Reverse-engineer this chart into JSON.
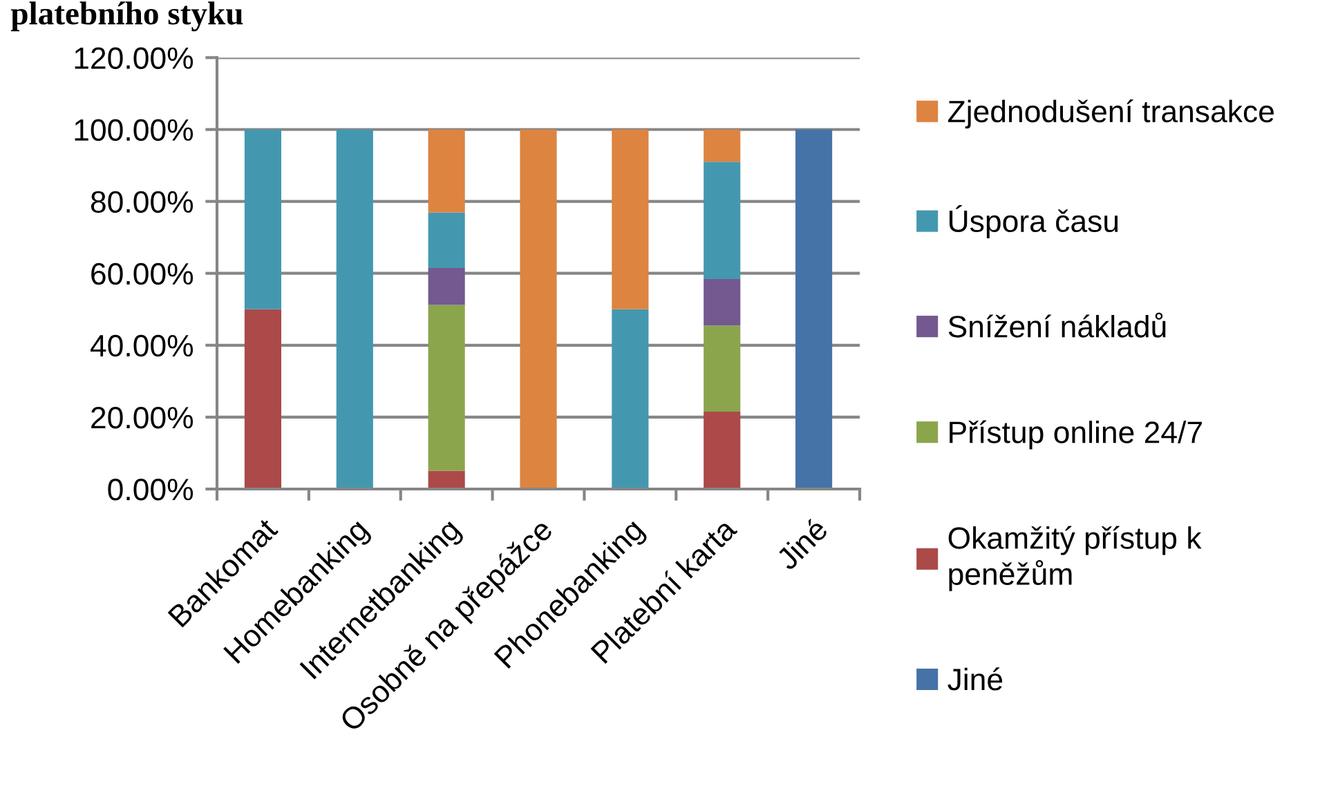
{
  "chart_data": {
    "type": "bar",
    "title": "platebního styku",
    "stacked": true,
    "categories": [
      "Bankomat",
      "Homebanking",
      "Internetbanking",
      "Osobně na přepážce",
      "Phonebanking",
      "Platební karta",
      "Jiné"
    ],
    "series": [
      {
        "name": "Jiné",
        "color": "#4573a7",
        "values": [
          null,
          null,
          null,
          null,
          null,
          null,
          100
        ]
      },
      {
        "name": "Okamžitý přístup k\npeněžům",
        "color": "#ab4a48",
        "values": [
          50,
          null,
          5.1,
          null,
          null,
          21.5,
          null
        ]
      },
      {
        "name": "Přístup online 24/7",
        "color": "#8ba54d",
        "values": [
          null,
          null,
          46.1,
          null,
          null,
          24.0,
          null
        ]
      },
      {
        "name": "Snížení nákladů",
        "color": "#73598f",
        "values": [
          null,
          null,
          10.3,
          null,
          null,
          12.9,
          null
        ]
      },
      {
        "name": "Úspora času",
        "color": "#4398b0",
        "values": [
          50,
          100,
          15.4,
          null,
          50,
          32.6,
          null
        ]
      },
      {
        "name": "Zjednodušení transakce",
        "color": "#dd8440",
        "values": [
          null,
          null,
          23.1,
          100,
          50,
          9.0,
          null
        ]
      }
    ],
    "ylim": [
      0,
      120
    ],
    "yticks": [
      {
        "value": 0,
        "label": "0.00%"
      },
      {
        "value": 20,
        "label": "20.00%"
      },
      {
        "value": 40,
        "label": "40.00%"
      },
      {
        "value": 60,
        "label": "60.00%"
      },
      {
        "value": 80,
        "label": "80.00%"
      },
      {
        "value": 100,
        "label": "100.00%"
      },
      {
        "value": 120,
        "label": "120.00%"
      }
    ],
    "grid": "y",
    "legend": "right"
  }
}
